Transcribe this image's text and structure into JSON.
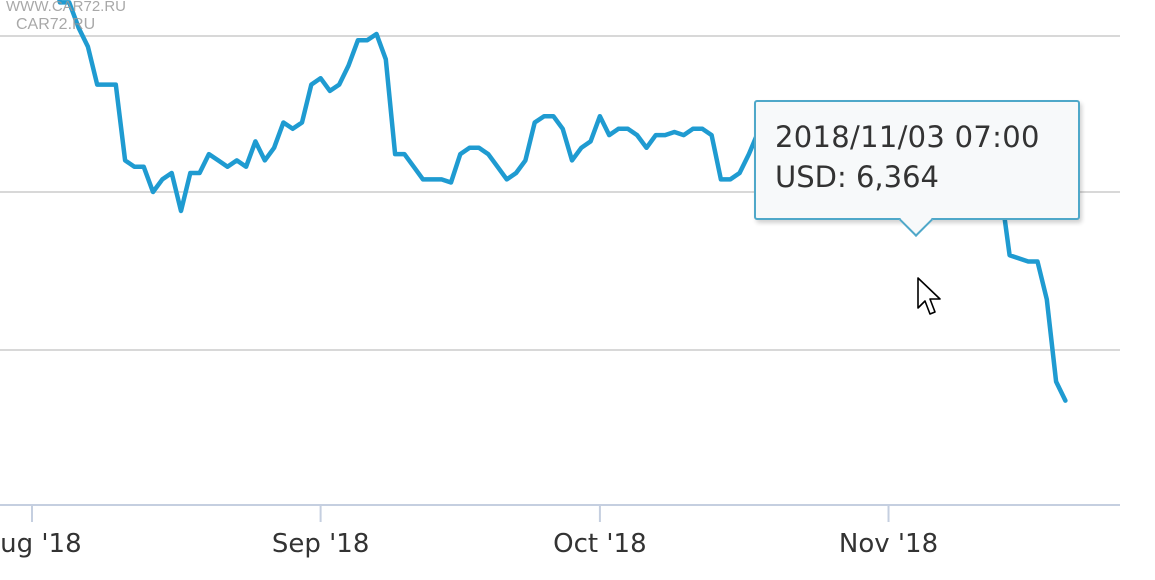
{
  "watermark": {
    "line1": "WWW.CAR72.RU",
    "line2": "CAR72.RU"
  },
  "tooltip": {
    "date": "2018/11/03 07:00",
    "series_label": "USD",
    "value": "6,364"
  },
  "colors": {
    "series": "#1f9bd1",
    "grid": "#d8d8d8",
    "axis": "#c5cfe0",
    "tick_label": "#333333",
    "tooltip_border": "#4fa8c9"
  },
  "icons": {
    "pointer": "mouse-pointer-icon"
  },
  "chart_data": {
    "type": "line",
    "x_axis": {
      "tick_labels": [
        "Aug '18",
        "Sep '18",
        "Oct '18",
        "Nov '18"
      ]
    },
    "grid": true,
    "legend": "none",
    "series": [
      {
        "name": "USD",
        "points": [
          [
            "2018-08-01",
            6700
          ],
          [
            "2018-08-02",
            6690
          ],
          [
            "2018-08-03",
            6630
          ],
          [
            "2018-08-04",
            6550
          ],
          [
            "2018-08-05",
            6550
          ],
          [
            "2018-08-06",
            6510
          ],
          [
            "2018-08-07",
            6480
          ],
          [
            "2018-08-08",
            6420
          ],
          [
            "2018-08-09",
            6420
          ],
          [
            "2018-08-10",
            6420
          ],
          [
            "2018-08-11",
            6300
          ],
          [
            "2018-08-12",
            6290
          ],
          [
            "2018-08-13",
            6290
          ],
          [
            "2018-08-14",
            6250
          ],
          [
            "2018-08-15",
            6270
          ],
          [
            "2018-08-16",
            6280
          ],
          [
            "2018-08-17",
            6220
          ],
          [
            "2018-08-18",
            6280
          ],
          [
            "2018-08-19",
            6280
          ],
          [
            "2018-08-20",
            6310
          ],
          [
            "2018-08-21",
            6300
          ],
          [
            "2018-08-22",
            6290
          ],
          [
            "2018-08-23",
            6300
          ],
          [
            "2018-08-24",
            6290
          ],
          [
            "2018-08-25",
            6330
          ],
          [
            "2018-08-26",
            6300
          ],
          [
            "2018-08-27",
            6320
          ],
          [
            "2018-08-28",
            6360
          ],
          [
            "2018-08-29",
            6350
          ],
          [
            "2018-08-30",
            6360
          ],
          [
            "2018-08-31",
            6420
          ],
          [
            "2018-09-01",
            6430
          ],
          [
            "2018-09-02",
            6410
          ],
          [
            "2018-09-03",
            6420
          ],
          [
            "2018-09-04",
            6450
          ],
          [
            "2018-09-05",
            6490
          ],
          [
            "2018-09-06",
            6490
          ],
          [
            "2018-09-07",
            6500
          ],
          [
            "2018-09-08",
            6460
          ],
          [
            "2018-09-09",
            6310
          ],
          [
            "2018-09-10",
            6310
          ],
          [
            "2018-09-11",
            6290
          ],
          [
            "2018-09-12",
            6270
          ],
          [
            "2018-09-13",
            6270
          ],
          [
            "2018-09-14",
            6270
          ],
          [
            "2018-09-15",
            6265
          ],
          [
            "2018-09-16",
            6310
          ],
          [
            "2018-09-17",
            6320
          ],
          [
            "2018-09-18",
            6320
          ],
          [
            "2018-09-19",
            6310
          ],
          [
            "2018-09-20",
            6290
          ],
          [
            "2018-09-21",
            6270
          ],
          [
            "2018-09-22",
            6280
          ],
          [
            "2018-09-23",
            6300
          ],
          [
            "2018-09-24",
            6360
          ],
          [
            "2018-09-25",
            6370
          ],
          [
            "2018-09-26",
            6370
          ],
          [
            "2018-09-27",
            6350
          ],
          [
            "2018-09-28",
            6300
          ],
          [
            "2018-09-29",
            6320
          ],
          [
            "2018-09-30",
            6330
          ],
          [
            "2018-10-01",
            6370
          ],
          [
            "2018-10-02",
            6340
          ],
          [
            "2018-10-03",
            6350
          ],
          [
            "2018-10-04",
            6350
          ],
          [
            "2018-10-05",
            6340
          ],
          [
            "2018-10-06",
            6320
          ],
          [
            "2018-10-07",
            6340
          ],
          [
            "2018-10-08",
            6340
          ],
          [
            "2018-10-09",
            6345
          ],
          [
            "2018-10-10",
            6340
          ],
          [
            "2018-10-11",
            6350
          ],
          [
            "2018-10-12",
            6350
          ],
          [
            "2018-10-13",
            6340
          ],
          [
            "2018-10-14",
            6270
          ],
          [
            "2018-10-15",
            6270
          ],
          [
            "2018-10-16",
            6280
          ],
          [
            "2018-10-17",
            6310
          ],
          [
            "2018-10-18",
            6345
          ],
          [
            "2018-10-19",
            6345
          ],
          [
            "2018-10-20",
            6340
          ],
          [
            "2018-10-21",
            6320
          ],
          [
            "2018-10-22",
            6325
          ],
          [
            "2018-10-23",
            6330
          ],
          [
            "2018-10-24",
            6325
          ],
          [
            "2018-10-25",
            6330
          ],
          [
            "2018-10-26",
            6325
          ],
          [
            "2018-10-27",
            6320
          ],
          [
            "2018-10-28",
            6320
          ],
          [
            "2018-10-29",
            6315
          ],
          [
            "2018-10-30",
            6300
          ],
          [
            "2018-10-31",
            6280
          ],
          [
            "2018-11-01",
            6285
          ],
          [
            "2018-11-02",
            6300
          ],
          [
            "2018-11-03",
            6364
          ],
          [
            "2018-11-04",
            6300
          ],
          [
            "2018-11-05",
            6310
          ],
          [
            "2018-11-06",
            6310
          ],
          [
            "2018-11-07",
            6330
          ],
          [
            "2018-11-08",
            6310
          ],
          [
            "2018-11-09",
            6305
          ],
          [
            "2018-11-10",
            6300
          ],
          [
            "2018-11-11",
            6300
          ],
          [
            "2018-11-12",
            6300
          ],
          [
            "2018-11-13",
            6260
          ],
          [
            "2018-11-14",
            6150
          ],
          [
            "2018-11-15",
            6145
          ],
          [
            "2018-11-16",
            6140
          ],
          [
            "2018-11-17",
            6140
          ],
          [
            "2018-11-18",
            6080
          ],
          [
            "2018-11-19",
            5950
          ],
          [
            "2018-11-20",
            5920
          ]
        ]
      }
    ]
  }
}
